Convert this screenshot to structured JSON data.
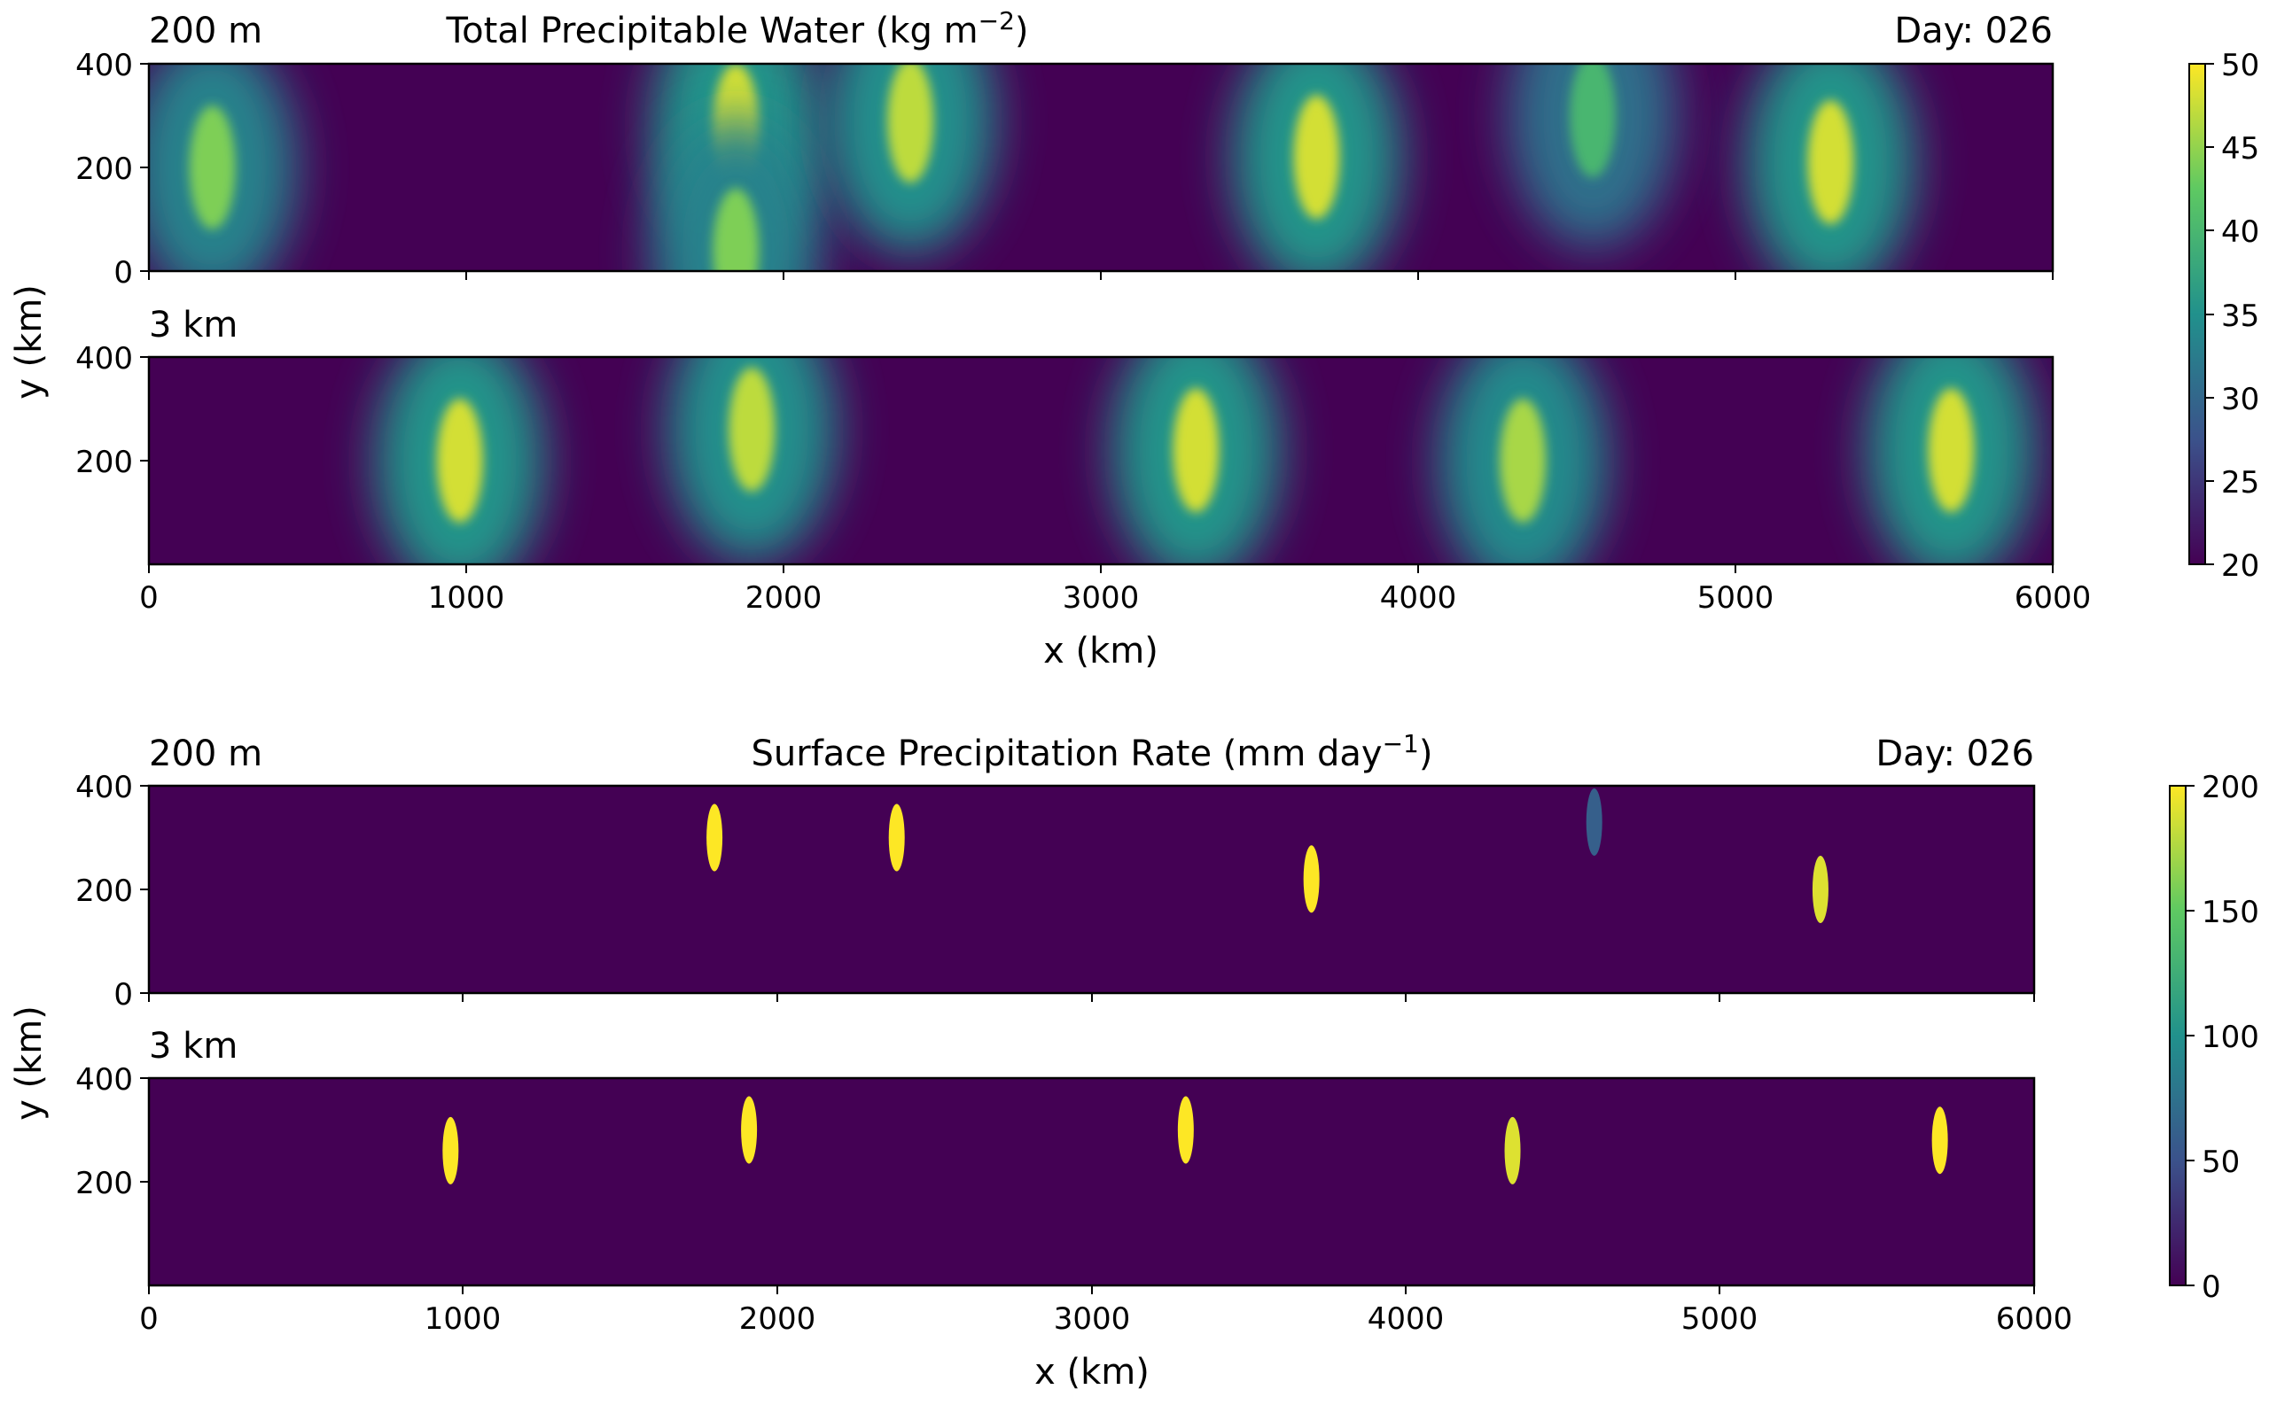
{
  "chart_data": [
    {
      "type": "heatmap",
      "title": "Total Precipitable Water (kg m",
      "title_sup": "−2",
      "title_tail": ")",
      "day_label": "Day: 026",
      "xlabel": "x (km)",
      "ylabel": "y (km)",
      "xlim": [
        0,
        6000
      ],
      "ylim": [
        0,
        400
      ],
      "xticks": [
        "0",
        "1000",
        "2000",
        "3000",
        "4000",
        "5000",
        "6000"
      ],
      "colorbar": {
        "min": 20,
        "max": 50,
        "ticks": [
          "20",
          "25",
          "30",
          "35",
          "40",
          "45",
          "50"
        ],
        "colormap": "viridis"
      },
      "panels": [
        {
          "label": "200 m",
          "yticks": [
            "0",
            "200",
            "400"
          ],
          "features": [
            {
              "x": 200,
              "y": 200,
              "peak": 44
            },
            {
              "x": 1850,
              "y": 280,
              "peak": 48
            },
            {
              "x": 1850,
              "y": 40,
              "peak": 44
            },
            {
              "x": 2400,
              "y": 290,
              "peak": 47
            },
            {
              "x": 3680,
              "y": 220,
              "peak": 48
            },
            {
              "x": 4550,
              "y": 300,
              "peak": 40
            },
            {
              "x": 5300,
              "y": 210,
              "peak": 48
            }
          ]
        },
        {
          "label": "3 km",
          "yticks": [
            "200",
            "400"
          ],
          "features": [
            {
              "x": 980,
              "y": 200,
              "peak": 48
            },
            {
              "x": 1900,
              "y": 260,
              "peak": 47
            },
            {
              "x": 3300,
              "y": 220,
              "peak": 48
            },
            {
              "x": 4330,
              "y": 200,
              "peak": 46
            },
            {
              "x": 5680,
              "y": 220,
              "peak": 48
            }
          ]
        }
      ]
    },
    {
      "type": "heatmap",
      "title": "Surface Precipitation Rate (mm day",
      "title_sup": "−1",
      "title_tail": ")",
      "day_label": "Day: 026",
      "xlabel": "x (km)",
      "ylabel": "y (km)",
      "xlim": [
        0,
        6000
      ],
      "ylim": [
        0,
        400
      ],
      "xticks": [
        "0",
        "1000",
        "2000",
        "3000",
        "4000",
        "5000",
        "6000"
      ],
      "colorbar": {
        "min": 0,
        "max": 200,
        "ticks": [
          "0",
          "50",
          "100",
          "150",
          "200"
        ],
        "colormap": "viridis"
      },
      "panels": [
        {
          "label": "200 m",
          "yticks": [
            "0",
            "200",
            "400"
          ],
          "features": [
            {
              "x": 1800,
              "y": 300,
              "peak": 200
            },
            {
              "x": 2380,
              "y": 300,
              "peak": 200
            },
            {
              "x": 3700,
              "y": 220,
              "peak": 200
            },
            {
              "x": 5320,
              "y": 200,
              "peak": 190
            },
            {
              "x": 4600,
              "y": 330,
              "peak": 60
            }
          ]
        },
        {
          "label": "3 km",
          "yticks": [
            "200",
            "400"
          ],
          "features": [
            {
              "x": 960,
              "y": 260,
              "peak": 200
            },
            {
              "x": 1910,
              "y": 300,
              "peak": 200
            },
            {
              "x": 3300,
              "y": 300,
              "peak": 200
            },
            {
              "x": 4340,
              "y": 260,
              "peak": 190
            },
            {
              "x": 5700,
              "y": 280,
              "peak": 200
            }
          ]
        }
      ]
    }
  ]
}
